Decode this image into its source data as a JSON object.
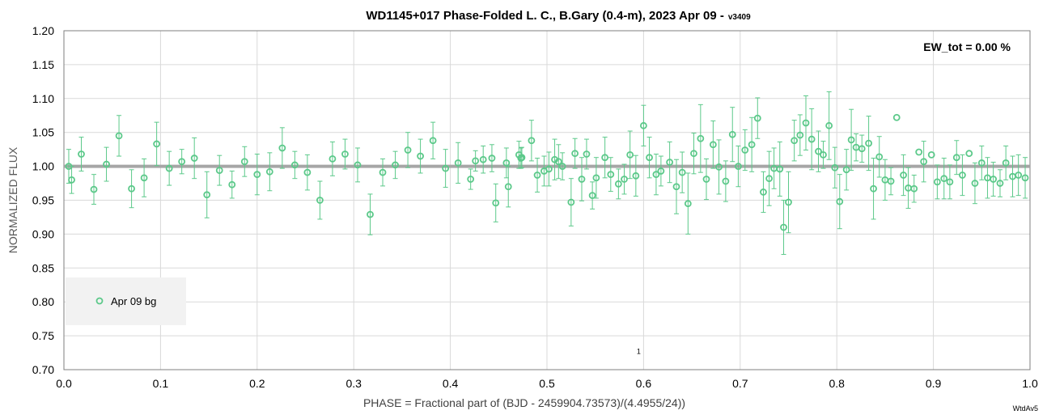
{
  "chart_data": {
    "type": "scatter",
    "title": "WD1145+017 Phase-Folded L. C., B.Gary (0.4-m), 2023 Apr 09 -",
    "title_version": "v3409",
    "xlabel": "PHASE = Fractional part of (BJD - 2459904.73573)/(4.4955/24))",
    "ylabel": "NORMALIZED FLUX",
    "xlim": [
      0.0,
      1.0
    ],
    "ylim": [
      0.7,
      1.2
    ],
    "x_ticks": [
      "0.0",
      "0.1",
      "0.2",
      "0.3",
      "0.4",
      "0.5",
      "0.6",
      "0.7",
      "0.8",
      "0.9",
      "1.0"
    ],
    "y_ticks": [
      "0.70",
      "0.75",
      "0.80",
      "0.85",
      "0.90",
      "0.95",
      "1.00",
      "1.05",
      "1.10",
      "1.15",
      "1.20"
    ],
    "grid": true,
    "reference_line": 1.0,
    "annotation": "EW_tot = 0.00 %",
    "center_label": "1",
    "corner_label": "WtdAv5",
    "legend": {
      "position": "bottom-left",
      "entry": "Apr 09 bg"
    },
    "series": [
      {
        "name": "Apr 09 bg",
        "color": "#5cc98a",
        "x": [
          0.005,
          0.008,
          0.018,
          0.031,
          0.044,
          0.057,
          0.07,
          0.083,
          0.096,
          0.109,
          0.122,
          0.135,
          0.148,
          0.161,
          0.174,
          0.187,
          0.2,
          0.213,
          0.226,
          0.239,
          0.252,
          0.265,
          0.278,
          0.291,
          0.304,
          0.317,
          0.33,
          0.343,
          0.356,
          0.369,
          0.382,
          0.395,
          0.408,
          0.421,
          0.426,
          0.434,
          0.443,
          0.447,
          0.458,
          0.46,
          0.471,
          0.473,
          0.474,
          0.484,
          0.49,
          0.497,
          0.502,
          0.508,
          0.512,
          0.516,
          0.525,
          0.529,
          0.536,
          0.541,
          0.547,
          0.551,
          0.56,
          0.566,
          0.574,
          0.58,
          0.586,
          0.592,
          0.6,
          0.606,
          0.613,
          0.618,
          0.627,
          0.634,
          0.64,
          0.646,
          0.652,
          0.659,
          0.665,
          0.672,
          0.678,
          0.685,
          0.692,
          0.698,
          0.705,
          0.712,
          0.718,
          0.724,
          0.73,
          0.735,
          0.741,
          0.745,
          0.75,
          0.756,
          0.762,
          0.768,
          0.774,
          0.781,
          0.786,
          0.792,
          0.798,
          0.803,
          0.81,
          0.815,
          0.82,
          0.826,
          0.833,
          0.838,
          0.844,
          0.85,
          0.856,
          0.862,
          0.869,
          0.874,
          0.88,
          0.885,
          0.89,
          0.898,
          0.904,
          0.911,
          0.917,
          0.924,
          0.93,
          0.937,
          0.943,
          0.95,
          0.956,
          0.962,
          0.969,
          0.975,
          0.982,
          0.988,
          0.995
        ],
        "y": [
          1.0,
          0.98,
          1.018,
          0.966,
          1.003,
          1.045,
          0.967,
          0.983,
          1.033,
          0.997,
          1.007,
          1.012,
          0.958,
          0.994,
          0.973,
          1.007,
          0.988,
          0.992,
          1.027,
          1.002,
          0.991,
          0.95,
          1.011,
          1.018,
          1.002,
          0.929,
          0.991,
          1.002,
          1.024,
          1.015,
          1.038,
          0.997,
          1.005,
          0.981,
          1.008,
          1.01,
          1.012,
          0.946,
          1.005,
          0.97,
          1.017,
          1.012,
          1.013,
          1.038,
          0.987,
          0.993,
          0.996,
          1.01,
          1.007,
          1.0,
          0.947,
          1.019,
          0.981,
          1.018,
          0.957,
          0.983,
          1.013,
          0.988,
          0.974,
          0.981,
          1.017,
          0.986,
          1.06,
          1.013,
          0.988,
          0.993,
          1.006,
          0.97,
          0.991,
          0.945,
          1.019,
          1.041,
          0.981,
          1.032,
          0.999,
          0.978,
          1.047,
          1.0,
          1.024,
          1.032,
          1.071,
          0.962,
          0.982,
          0.997,
          0.996,
          0.91,
          0.947,
          1.038,
          1.046,
          1.064,
          1.04,
          1.022,
          1.017,
          1.06,
          0.998,
          0.948,
          0.995,
          1.039,
          1.028,
          1.026,
          1.034,
          0.967,
          1.014,
          0.98,
          0.978,
          1.072,
          0.987,
          0.968,
          0.967,
          1.021,
          1.007,
          1.017,
          0.977,
          0.982,
          0.977,
          1.013,
          0.987,
          1.019,
          0.975,
          1.005,
          0.983,
          0.981,
          0.975,
          1.005,
          0.985,
          0.987,
          0.983
        ],
        "err": [
          0.025,
          0.02,
          0.025,
          0.022,
          0.025,
          0.03,
          0.028,
          0.028,
          0.032,
          0.025,
          0.018,
          0.03,
          0.034,
          0.022,
          0.02,
          0.022,
          0.03,
          0.028,
          0.03,
          0.02,
          0.026,
          0.028,
          0.025,
          0.022,
          0.025,
          0.03,
          0.02,
          0.02,
          0.026,
          0.025,
          0.027,
          0.028,
          0.03,
          0.015,
          0.015,
          0.02,
          0.02,
          0.028,
          0.022,
          0.03,
          0.02,
          0.015,
          0.015,
          0.03,
          0.025,
          0.022,
          0.025,
          0.03,
          0.025,
          0.02,
          0.035,
          0.022,
          0.032,
          0.022,
          0.02,
          0.03,
          0.03,
          0.025,
          0.022,
          0.022,
          0.035,
          0.03,
          0.03,
          0.03,
          0.03,
          0.022,
          0.03,
          0.04,
          0.03,
          0.045,
          0.03,
          0.05,
          0.03,
          0.035,
          0.04,
          0.03,
          0.04,
          0.03,
          0.03,
          0.04,
          0.03,
          0.03,
          0.04,
          0.03,
          0.04,
          0.04,
          0.045,
          0.03,
          0.03,
          0.04,
          0.045,
          0.03,
          0.02,
          0.05,
          0.03,
          0.04,
          0.03,
          0.045,
          0.02,
          0.02,
          0.04,
          0.045,
          0.03,
          0.03,
          0.02,
          0.0,
          0.03,
          0.03,
          0.02,
          0.0,
          0.03,
          0.0,
          0.025,
          0.03,
          0.025,
          0.025,
          0.03,
          0.0,
          0.03,
          0.025,
          0.03,
          0.025,
          0.02,
          0.025,
          0.03,
          0.03,
          0.03
        ]
      }
    ]
  }
}
